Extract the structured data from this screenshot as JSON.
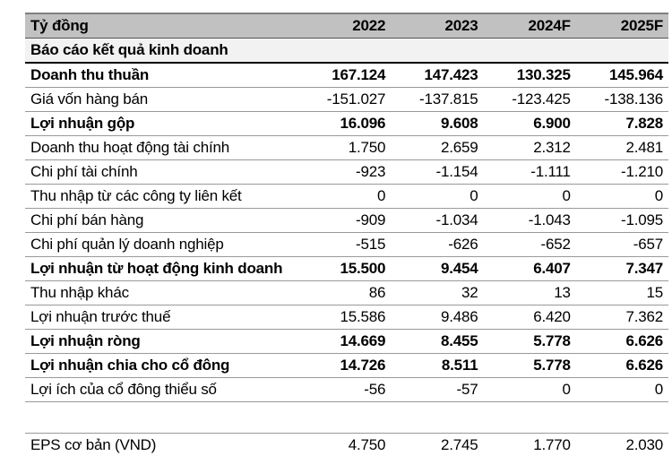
{
  "colors": {
    "header_bg": "#c1c1c1",
    "section_bg": "#f2f2f2",
    "row_border": "#999999",
    "header_top_border": "#808080",
    "header_bottom_border": "#555555",
    "section_bottom_border": "#000000",
    "text": "#000000",
    "page_bg": "#ffffff"
  },
  "table": {
    "unit_label": "Tỷ đồng",
    "columns": [
      "2022",
      "2023",
      "2024F",
      "2025F"
    ],
    "section_header": "Báo cáo kết quả kinh doanh",
    "rows": [
      {
        "label": "Doanh thu thuần",
        "bold": true,
        "values": [
          "167.124",
          "147.423",
          "130.325",
          "145.964"
        ]
      },
      {
        "label": "Giá vốn hàng bán",
        "bold": false,
        "values": [
          "-151.027",
          "-137.815",
          "-123.425",
          "-138.136"
        ]
      },
      {
        "label": "Lợi nhuận gộp",
        "bold": true,
        "values": [
          "16.096",
          "9.608",
          "6.900",
          "7.828"
        ]
      },
      {
        "label": "Doanh thu hoạt động tài chính",
        "bold": false,
        "values": [
          "1.750",
          "2.659",
          "2.312",
          "2.481"
        ]
      },
      {
        "label": "Chi phí tài chính",
        "bold": false,
        "values": [
          "-923",
          "-1.154",
          "-1.111",
          "-1.210"
        ]
      },
      {
        "label": "Thu nhập từ các công ty liên kết",
        "bold": false,
        "values": [
          "0",
          "0",
          "0",
          "0"
        ]
      },
      {
        "label": "Chi phí bán hàng",
        "bold": false,
        "values": [
          "-909",
          "-1.034",
          "-1.043",
          "-1.095"
        ]
      },
      {
        "label": "Chi phí quản lý doanh nghiệp",
        "bold": false,
        "values": [
          "-515",
          "-626",
          "-652",
          "-657"
        ]
      },
      {
        "label": "Lợi nhuận từ hoạt động kinh doanh",
        "bold": true,
        "values": [
          "15.500",
          "9.454",
          "6.407",
          "7.347"
        ]
      },
      {
        "label": "Thu nhập khác",
        "bold": false,
        "values": [
          "86",
          "32",
          "13",
          "15"
        ]
      },
      {
        "label": "Lợi nhuận trước thuế",
        "bold": false,
        "values": [
          "15.586",
          "9.486",
          "6.420",
          "7.362"
        ]
      },
      {
        "label": "Lợi nhuận ròng",
        "bold": true,
        "values": [
          "14.669",
          "8.455",
          "5.778",
          "6.626"
        ]
      },
      {
        "label": "Lợi nhuận chia cho cổ đông",
        "bold": true,
        "values": [
          "14.726",
          "8.511",
          "5.778",
          "6.626"
        ]
      },
      {
        "label": "Lợi ích của cổ đông thiểu số",
        "bold": false,
        "values": [
          "-56",
          "-57",
          "0",
          "0"
        ]
      }
    ],
    "eps_row": {
      "label": "EPS cơ bản (VND)",
      "values": [
        "4.750",
        "2.745",
        "1.770",
        "2.030"
      ]
    }
  }
}
